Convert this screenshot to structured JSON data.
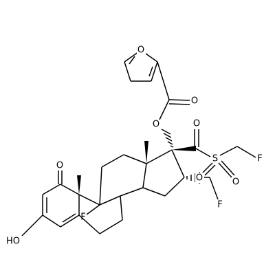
{
  "atoms": [
    {
      "label": "O"
    },
    {
      "label": "O"
    },
    {
      "label": "O"
    },
    {
      "label": "O"
    },
    {
      "label": "S"
    },
    {
      "label": "F"
    },
    {
      "label": "O"
    },
    {
      "label": "O"
    },
    {
      "label": "O"
    },
    {
      "label": "F"
    },
    {
      "label": "F"
    },
    {
      "label": "HO"
    }
  ]
}
